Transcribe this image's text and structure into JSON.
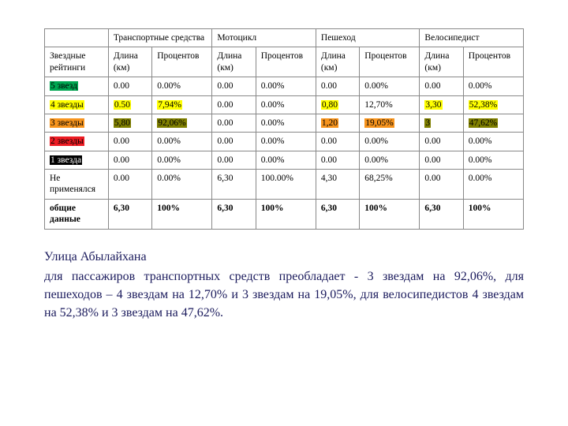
{
  "table": {
    "border_color": "#888888",
    "header_row1": {
      "blank": "",
      "vehicles": "Транспортные средства",
      "motorcycle": "Мотоцикл",
      "pedestrian": "Пешеход",
      "cyclist": "Велосипедист"
    },
    "header_row2": {
      "star_ratings": "Звездные рейтинги",
      "length": "Длина (км)",
      "percent": "Процентов"
    },
    "rows": [
      {
        "key": "r5",
        "label": "5 звезд",
        "label_highlight": "#00a651",
        "cells": {
          "veh_len": "0.00",
          "veh_pct": "0.00%",
          "moto_len": "0.00",
          "moto_pct": "0.00%",
          "ped_len": "0.00",
          "ped_pct": "0.00%",
          "cyc_len": "0.00",
          "cyc_pct": "0.00%"
        }
      },
      {
        "key": "r4",
        "label": "4 звезды",
        "label_highlight": "#ffff00",
        "cells": {
          "veh_len": "0.50",
          "veh_len_hl": "#ffff00",
          "veh_pct": "7,94%",
          "veh_pct_hl": "#ffff00",
          "moto_len": "0.00",
          "moto_pct": "0.00%",
          "ped_len": "0,80",
          "ped_len_hl": "#ffff00",
          "ped_pct": "12,70%",
          "cyc_len": "3,30",
          "cyc_len_hl": "#ffff00",
          "cyc_pct": "52,38%",
          "cyc_pct_hl": "#ffff00"
        }
      },
      {
        "key": "r3",
        "label": "3 звезды",
        "label_highlight": "#f7941d",
        "cells": {
          "veh_len": "5,80",
          "veh_len_hl": "#808000",
          "veh_pct": "92,06%",
          "veh_pct_hl": "#808000",
          "moto_len": "0.00",
          "moto_pct": "0.00%",
          "ped_len": "1,20",
          "ped_len_hl": "#f7941d",
          "ped_pct": "19,05%",
          "ped_pct_hl": "#f7941d",
          "cyc_len": "3",
          "cyc_len_hl": "#808000",
          "cyc_pct": "47,62%",
          "cyc_pct_hl": "#808000"
        }
      },
      {
        "key": "r2",
        "label": "2 звезды",
        "label_highlight": "#ed1c24",
        "cells": {
          "veh_len": "0.00",
          "veh_pct": "0.00%",
          "moto_len": "0.00",
          "moto_pct": "0.00%",
          "ped_len": "0.00",
          "ped_pct": "0.00%",
          "cyc_len": "0.00",
          "cyc_pct": "0.00%"
        }
      },
      {
        "key": "r1",
        "label": "1 звезда",
        "label_highlight": "#000000",
        "label_text_color": "#ffffff",
        "cells": {
          "veh_len": "0.00",
          "veh_pct": "0.00%",
          "moto_len": "0.00",
          "moto_pct": "0.00%",
          "ped_len": "0.00",
          "ped_pct": "0.00%",
          "cyc_len": "0.00",
          "cyc_pct": "0.00%"
        }
      },
      {
        "key": "na",
        "label": "Не применялся",
        "cells": {
          "veh_len": "0.00",
          "veh_pct": "0.00%",
          "moto_len": "6,30",
          "moto_pct": "100.00%",
          "ped_len": "4,30",
          "ped_pct": "68,25%",
          "cyc_len": "0.00",
          "cyc_pct": "0.00%"
        }
      }
    ],
    "totals": {
      "label": "общие данные",
      "cells": {
        "veh_len": "6,30",
        "veh_pct": "100%",
        "moto_len": "6,30",
        "moto_pct": "100%",
        "ped_len": "6,30",
        "ped_pct": "100%",
        "cyc_len": "6,30",
        "cyc_pct": "100%"
      }
    }
  },
  "caption": {
    "title": "Улица Абылайхана",
    "desc": "для пассажиров транспортных средств преобладает - 3 звездам на 92,06%, для пешеходов – 4 звездам на 12,70% и 3 звездам на 19,05%, для велосипедистов 4 звездам на 52,38% и 3 звездам на 47,62%.",
    "title_color": "#1a1a5c",
    "desc_color": "#1a1a5c",
    "title_fontsize": 16,
    "desc_fontsize": 16
  }
}
